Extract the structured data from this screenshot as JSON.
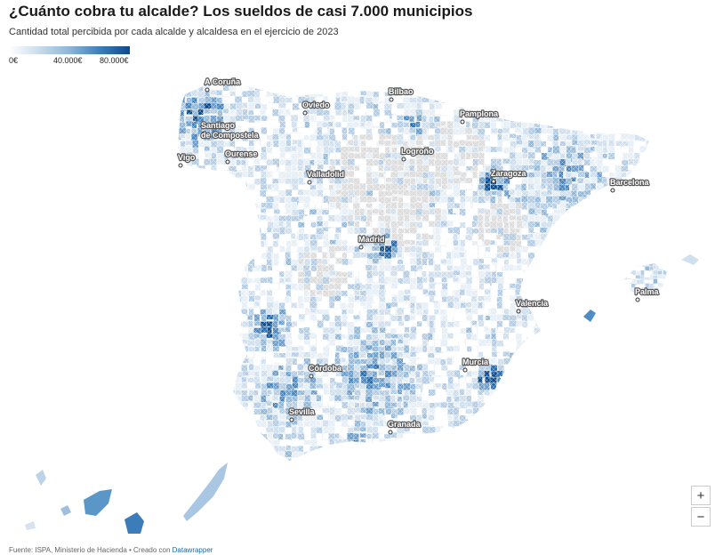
{
  "title": "¿Cuánto cobra tu alcalde? Los sueldos de casi 7.000 municipios",
  "subtitle": "Cantidad total percibida por cada alcalde y alcaldesa en el ejercicio de 2023",
  "legend": {
    "min": "0€",
    "mid": "40.000€",
    "max": "80.000€"
  },
  "colors": {
    "no_data": "#dcdcdc",
    "scale_low": "#ffffff",
    "scale_high": "#0d4a8a"
  },
  "cities": [
    {
      "name": "A Coruña"
    },
    {
      "name": "Bilbao"
    },
    {
      "name": "Oviedo"
    },
    {
      "name": "Pamplona"
    },
    {
      "name": "Santiago de Compostela"
    },
    {
      "name": "Logroño"
    },
    {
      "name": "Vigo"
    },
    {
      "name": "Ourense"
    },
    {
      "name": "Valladolid"
    },
    {
      "name": "Zaragoza"
    },
    {
      "name": "Barcelona"
    },
    {
      "name": "Madrid"
    },
    {
      "name": "Palma"
    },
    {
      "name": "Valencia"
    },
    {
      "name": "Córdoba"
    },
    {
      "name": "Murcia"
    },
    {
      "name": "Sevilla"
    },
    {
      "name": "Granada"
    }
  ],
  "zoom": {
    "in": "+",
    "out": "−"
  },
  "footer": {
    "source": "Fuente: ISPA, Ministerio de Hacienda • Creado con ",
    "tool": "Datawrapper"
  }
}
